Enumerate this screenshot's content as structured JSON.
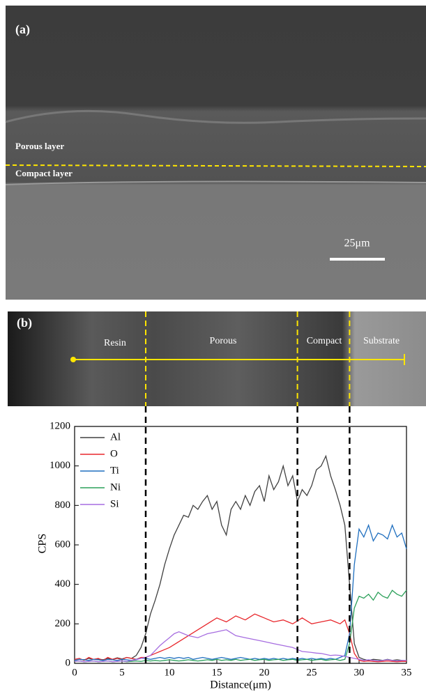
{
  "panels": {
    "a": {
      "label": "(a)",
      "porous": "Porous layer",
      "compact": "Compact layer",
      "scale": "25μm"
    },
    "b": {
      "label": "(b)",
      "regions": [
        "Resin",
        "Porous",
        "Compact",
        "Substrate"
      ]
    }
  },
  "chart_data": {
    "type": "line",
    "x_label": "Distance(μm)",
    "y_label": "CPS",
    "xlim": [
      0,
      35
    ],
    "xticks": [
      0,
      5,
      10,
      15,
      20,
      25,
      30,
      35
    ],
    "ylim": [
      0,
      1200
    ],
    "yticks": [
      0,
      200,
      400,
      600,
      800,
      1000,
      1200
    ],
    "legend": "upper left",
    "boundaries": [
      7.5,
      23.5,
      29
    ],
    "x": [
      0,
      0.5,
      1,
      1.5,
      2,
      2.5,
      3,
      3.5,
      4,
      4.5,
      5,
      5.5,
      6,
      6.5,
      7,
      7.5,
      8,
      8.5,
      9,
      9.5,
      10,
      10.5,
      11,
      11.5,
      12,
      12.5,
      13,
      13.5,
      14,
      14.5,
      15,
      15.5,
      16,
      16.5,
      17,
      17.5,
      18,
      18.5,
      19,
      19.5,
      20,
      20.5,
      21,
      21.5,
      22,
      22.5,
      23,
      23.5,
      24,
      24.5,
      25,
      25.5,
      26,
      26.5,
      27,
      27.5,
      28,
      28.5,
      29,
      29.5,
      30,
      30.5,
      31,
      31.5,
      32,
      32.5,
      33,
      33.5,
      34,
      34.5,
      35
    ],
    "series": [
      {
        "name": "Al",
        "color": "#404040",
        "values": [
          15,
          20,
          18,
          25,
          20,
          22,
          18,
          25,
          20,
          28,
          22,
          30,
          25,
          40,
          80,
          150,
          250,
          320,
          400,
          500,
          580,
          650,
          700,
          750,
          740,
          800,
          780,
          820,
          850,
          780,
          820,
          700,
          650,
          780,
          820,
          780,
          850,
          800,
          870,
          900,
          820,
          950,
          880,
          920,
          1000,
          900,
          950,
          820,
          880,
          850,
          900,
          980,
          1000,
          1050,
          950,
          880,
          800,
          700,
          400,
          100,
          30,
          20,
          15,
          20,
          18,
          15,
          20,
          15,
          18,
          15,
          12
        ]
      },
      {
        "name": "O",
        "color": "#e8262b",
        "values": [
          20,
          25,
          15,
          30,
          20,
          25,
          15,
          30,
          20,
          25,
          20,
          30,
          25,
          20,
          30,
          30,
          40,
          50,
          60,
          70,
          80,
          95,
          110,
          125,
          140,
          155,
          170,
          185,
          200,
          215,
          230,
          220,
          210,
          225,
          240,
          230,
          220,
          235,
          250,
          240,
          230,
          220,
          210,
          215,
          220,
          210,
          200,
          215,
          230,
          215,
          200,
          205,
          210,
          215,
          220,
          210,
          200,
          220,
          150,
          50,
          15,
          10,
          12,
          10,
          8,
          10,
          12,
          10,
          8,
          10,
          10
        ]
      },
      {
        "name": "Ti",
        "color": "#1f6fbf",
        "values": [
          15,
          20,
          18,
          15,
          20,
          18,
          15,
          20,
          18,
          15,
          20,
          18,
          15,
          20,
          25,
          25,
          20,
          25,
          30,
          25,
          30,
          25,
          30,
          25,
          30,
          20,
          25,
          30,
          25,
          20,
          25,
          30,
          25,
          20,
          25,
          30,
          25,
          20,
          25,
          20,
          25,
          20,
          25,
          20,
          25,
          20,
          25,
          20,
          25,
          20,
          25,
          20,
          25,
          20,
          25,
          20,
          30,
          40,
          150,
          500,
          680,
          640,
          700,
          620,
          660,
          650,
          630,
          700,
          640,
          660,
          580
        ]
      },
      {
        "name": "Ni",
        "color": "#2ca05a",
        "values": [
          10,
          12,
          8,
          10,
          12,
          8,
          10,
          12,
          8,
          10,
          12,
          8,
          10,
          12,
          10,
          15,
          12,
          15,
          12,
          15,
          18,
          15,
          12,
          15,
          18,
          15,
          12,
          15,
          18,
          15,
          20,
          15,
          18,
          15,
          20,
          15,
          18,
          20,
          15,
          18,
          20,
          15,
          18,
          20,
          15,
          18,
          20,
          15,
          18,
          20,
          15,
          18,
          20,
          15,
          18,
          20,
          15,
          20,
          100,
          280,
          340,
          330,
          350,
          320,
          360,
          340,
          330,
          370,
          350,
          340,
          370
        ]
      },
      {
        "name": "Si",
        "color": "#a66de0",
        "values": [
          10,
          12,
          8,
          10,
          12,
          8,
          10,
          12,
          8,
          10,
          12,
          10,
          15,
          18,
          25,
          30,
          40,
          65,
          90,
          110,
          130,
          150,
          160,
          150,
          140,
          135,
          130,
          140,
          150,
          155,
          160,
          165,
          170,
          155,
          140,
          135,
          130,
          125,
          120,
          115,
          110,
          105,
          100,
          95,
          90,
          85,
          80,
          70,
          60,
          58,
          55,
          52,
          50,
          45,
          40,
          42,
          40,
          35,
          30,
          25,
          20,
          15,
          18,
          15,
          12,
          15,
          18,
          15,
          12,
          15,
          15
        ]
      }
    ]
  }
}
